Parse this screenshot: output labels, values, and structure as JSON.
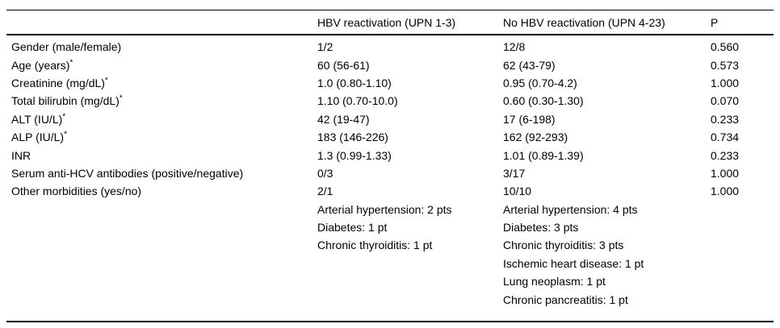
{
  "table": {
    "columns": [
      "",
      "HBV reactivation (UPN 1-3)",
      "No HBV reactivation (UPN 4-23)",
      "P"
    ],
    "rows": [
      {
        "label": "Gender (male/female)",
        "sup": "",
        "hbv": "1/2",
        "no_hbv": "12/8",
        "p": "0.560"
      },
      {
        "label": "Age (years)",
        "sup": "*",
        "hbv": "60 (56-61)",
        "no_hbv": "62 (43-79)",
        "p": "0.573"
      },
      {
        "label": "Creatinine (mg/dL)",
        "sup": "*",
        "hbv": "1.0 (0.80-1.10)",
        "no_hbv": "0.95 (0.70-4.2)",
        "p": "1.000"
      },
      {
        "label": "Total bilirubin (mg/dL)",
        "sup": "*",
        "hbv": "1.10 (0.70-10.0)",
        "no_hbv": "0.60 (0.30-1.30)",
        "p": "0.070"
      },
      {
        "label": "ALT (IU/L)",
        "sup": "*",
        "hbv": "42 (19-47)",
        "no_hbv": "17 (6-198)",
        "p": "0.233"
      },
      {
        "label": "ALP (IU/L)",
        "sup": "*",
        "hbv": "183 (146-226)",
        "no_hbv": "162 (92-293)",
        "p": "0.734"
      },
      {
        "label": "INR",
        "sup": "",
        "hbv": "1.3 (0.99-1.33)",
        "no_hbv": "1.01 (0.89-1.39)",
        "p": "0.233"
      },
      {
        "label": "Serum anti-HCV antibodies (positive/negative)",
        "sup": "",
        "hbv": "0/3",
        "no_hbv": "3/17",
        "p": "1.000"
      },
      {
        "label": "Other morbidities (yes/no)",
        "sup": "",
        "hbv": "2/1",
        "no_hbv": "10/10",
        "p": "1.000"
      }
    ],
    "morbidity_details": {
      "hbv": [
        "Arterial hypertension: 2 pts",
        "Diabetes: 1 pt",
        "Chronic thyroiditis: 1 pt"
      ],
      "no_hbv": [
        "Arterial hypertension: 4 pts",
        "Diabetes: 3 pts",
        "Chronic thyroiditis: 3 pts",
        "Ischemic heart disease: 1 pt",
        "Lung neoplasm: 1 pt",
        "Chronic pancreatitis: 1 pt"
      ]
    }
  },
  "colors": {
    "text": "#000000",
    "background": "#ffffff",
    "border": "#000000"
  }
}
